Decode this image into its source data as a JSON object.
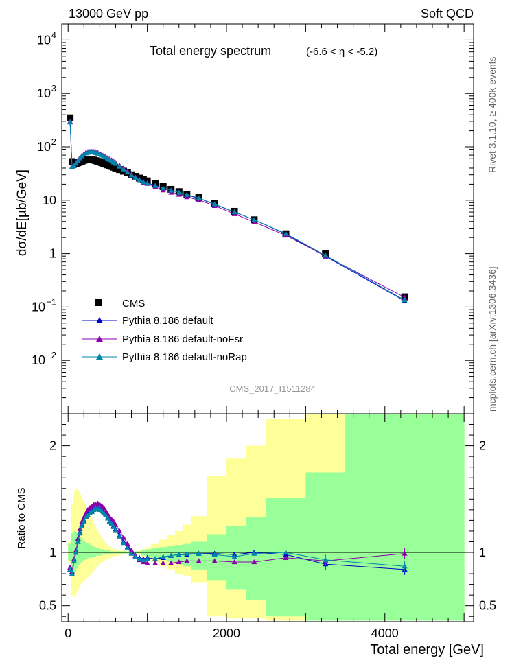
{
  "header": {
    "left": "13000 GeV pp",
    "right": "Soft QCD"
  },
  "side": {
    "rivet": "Rivet 3.1.10, ≥ 400k events",
    "mcplots": "mcplots.cern.ch [arXiv:1306.3436]"
  },
  "chart_data": [
    {
      "type": "line",
      "title": "Total energy spectrum",
      "title_range": "(-6.6 < η < -5.2)",
      "watermark": "CMS_2017_I1511284",
      "ylabel": "dσ/dE[µb/GeV]",
      "yscale": "log",
      "ylim": [
        0.001,
        20000
      ],
      "xlim": [
        -80,
        5120
      ],
      "y_ticks": [
        {
          "v": 0.01,
          "label": "10",
          "exp": "−2"
        },
        {
          "v": 0.1,
          "label": "10",
          "exp": "−1"
        },
        {
          "v": 1,
          "label": "1",
          "exp": ""
        },
        {
          "v": 10,
          "label": "10",
          "exp": ""
        },
        {
          "v": 100,
          "label": "10",
          "exp": "2"
        },
        {
          "v": 1000,
          "label": "10",
          "exp": "3"
        },
        {
          "v": 10000,
          "label": "10",
          "exp": "4"
        }
      ],
      "x": [
        25,
        50,
        75,
        100,
        125,
        150,
        175,
        200,
        225,
        250,
        275,
        300,
        325,
        350,
        375,
        400,
        425,
        450,
        475,
        500,
        525,
        550,
        575,
        600,
        650,
        700,
        750,
        800,
        850,
        900,
        950,
        1000,
        1100,
        1200,
        1300,
        1400,
        1500,
        1650,
        1850,
        2100,
        2350,
        2750,
        3250,
        4250
      ],
      "series": [
        {
          "name": "CMS",
          "color": "#000000",
          "marker": "square",
          "values": [
            350,
            53,
            48,
            49,
            50.5,
            52,
            54,
            56,
            57.5,
            58,
            58,
            57.5,
            56.5,
            55,
            53.5,
            52,
            50.5,
            49,
            47.5,
            46,
            44.5,
            43,
            41.5,
            40,
            37.5,
            35,
            32.5,
            30,
            28,
            26,
            24.5,
            23,
            20.5,
            18,
            16,
            14.5,
            13,
            11.2,
            8.7,
            6.2,
            4.3,
            2.35,
            1.0,
            0.155
          ]
        },
        {
          "name": "Pythia 8.186 default",
          "color": "#0000cc",
          "marker": "triangle",
          "values": [
            295,
            42,
            44,
            49,
            56,
            62,
            68,
            73,
            77,
            79,
            80,
            80,
            79.5,
            78,
            76,
            73.5,
            70.5,
            67.5,
            64.5,
            61,
            58,
            55,
            52,
            49,
            43.5,
            38.5,
            34,
            30,
            27,
            24.5,
            22.5,
            21,
            19,
            17,
            15.5,
            14,
            12.5,
            10.8,
            8.4,
            6.0,
            4.3,
            2.32,
            0.89,
            0.13
          ]
        },
        {
          "name": "Pythia 8.186 default-noFsr",
          "color": "#8a00aa",
          "marker": "triangle",
          "values": [
            300,
            43,
            45,
            50,
            57,
            63,
            69,
            74,
            78.5,
            81,
            82,
            82,
            81.5,
            80,
            78,
            75.5,
            72.5,
            69.5,
            66,
            62.5,
            59.5,
            56.5,
            53.5,
            50.5,
            45,
            40,
            35,
            30.5,
            27,
            24,
            21.5,
            20.5,
            17.8,
            15.5,
            14.0,
            12.8,
            11.5,
            10.1,
            7.9,
            5.55,
            3.9,
            2.2,
            0.91,
            0.152
          ]
        },
        {
          "name": "Pythia 8.186 default-noRap",
          "color": "#0088aa",
          "marker": "triangle",
          "values": [
            290,
            42,
            44,
            49,
            55.5,
            61.5,
            67.5,
            72.5,
            76.5,
            78.5,
            79.5,
            79.5,
            79,
            77.5,
            75.5,
            73,
            70,
            67,
            64,
            60.5,
            57.5,
            54.5,
            51.5,
            48.5,
            43,
            38,
            33.5,
            29.5,
            26.5,
            24,
            22,
            20.8,
            18.7,
            17,
            15.3,
            14,
            12.8,
            11,
            8.5,
            6.05,
            4.3,
            2.37,
            0.93,
            0.135
          ]
        }
      ]
    },
    {
      "type": "line",
      "ylabel": "Ratio to CMS",
      "xlabel": "Total energy [GeV]",
      "ylim": [
        0.35,
        2.3
      ],
      "y_ticks": [
        0.5,
        1,
        2
      ],
      "x_ticks": [
        0,
        2000,
        4000
      ],
      "band_edges": [
        0,
        40,
        60,
        80,
        100,
        125,
        150,
        175,
        200,
        225,
        250,
        275,
        300,
        325,
        350,
        375,
        400,
        425,
        450,
        475,
        500,
        525,
        550,
        575,
        600,
        625,
        675,
        725,
        775,
        825,
        875,
        925,
        975,
        1050,
        1150,
        1250,
        1350,
        1450,
        1550,
        1750,
        2000,
        2250,
        2500,
        3000,
        3500,
        5000
      ],
      "yellow_lo": [
        0.9,
        0.6,
        0.58,
        0.6,
        0.62,
        0.66,
        0.7,
        0.72,
        0.74,
        0.76,
        0.78,
        0.8,
        0.82,
        0.84,
        0.86,
        0.88,
        0.9,
        0.91,
        0.92,
        0.93,
        0.94,
        0.95,
        0.96,
        0.96,
        0.97,
        0.97,
        0.98,
        0.98,
        0.99,
        0.99,
        0.98,
        0.96,
        0.94,
        0.91,
        0.87,
        0.84,
        0.8,
        0.78,
        0.72,
        0.4,
        0.38,
        0.38,
        0.36,
        0.36,
        0.36
      ],
      "yellow_hi": [
        1.1,
        1.45,
        1.55,
        1.6,
        1.6,
        1.58,
        1.54,
        1.5,
        1.46,
        1.42,
        1.38,
        1.34,
        1.3,
        1.26,
        1.22,
        1.19,
        1.16,
        1.13,
        1.1,
        1.08,
        1.06,
        1.05,
        1.04,
        1.03,
        1.03,
        1.02,
        1.02,
        1.01,
        1.01,
        1.01,
        1.02,
        1.03,
        1.05,
        1.08,
        1.12,
        1.16,
        1.2,
        1.26,
        1.34,
        1.72,
        1.88,
        2.0,
        2.25,
        2.3,
        2.3
      ],
      "green_lo": [
        0.92,
        0.82,
        0.8,
        0.82,
        0.85,
        0.88,
        0.9,
        0.92,
        0.93,
        0.94,
        0.95,
        0.95,
        0.96,
        0.96,
        0.97,
        0.97,
        0.97,
        0.98,
        0.98,
        0.98,
        0.98,
        0.98,
        0.99,
        0.99,
        0.99,
        0.99,
        0.99,
        0.99,
        0.99,
        0.99,
        0.99,
        0.97,
        0.96,
        0.95,
        0.93,
        0.91,
        0.89,
        0.87,
        0.84,
        0.74,
        0.65,
        0.55,
        0.4,
        0.36,
        0.36
      ],
      "green_hi": [
        1.08,
        1.18,
        1.2,
        1.2,
        1.18,
        1.16,
        1.14,
        1.12,
        1.1,
        1.09,
        1.08,
        1.07,
        1.06,
        1.05,
        1.04,
        1.04,
        1.03,
        1.03,
        1.02,
        1.02,
        1.02,
        1.01,
        1.01,
        1.01,
        1.01,
        1.01,
        1.01,
        1.01,
        1.01,
        1.01,
        1.01,
        1.02,
        1.03,
        1.04,
        1.05,
        1.06,
        1.07,
        1.08,
        1.1,
        1.17,
        1.25,
        1.33,
        1.51,
        1.75,
        2.3
      ],
      "x": [
        25,
        50,
        75,
        100,
        125,
        150,
        175,
        200,
        225,
        250,
        275,
        300,
        325,
        350,
        375,
        400,
        425,
        450,
        475,
        500,
        525,
        550,
        575,
        600,
        650,
        700,
        750,
        800,
        850,
        900,
        950,
        1000,
        1100,
        1200,
        1300,
        1400,
        1500,
        1650,
        1850,
        2100,
        2350,
        2750,
        3250,
        4250
      ],
      "series": [
        {
          "name": "Pythia 8.186 default",
          "color": "#0000cc",
          "values": [
            0.84,
            0.8,
            0.92,
            1.0,
            1.1,
            1.19,
            1.26,
            1.3,
            1.34,
            1.37,
            1.38,
            1.39,
            1.41,
            1.42,
            1.42,
            1.41,
            1.4,
            1.38,
            1.36,
            1.33,
            1.3,
            1.28,
            1.25,
            1.22,
            1.16,
            1.1,
            1.05,
            1.0,
            0.97,
            0.95,
            0.94,
            0.95,
            0.94,
            0.95,
            0.97,
            0.98,
            0.98,
            0.99,
            0.99,
            0.98,
            1.0,
            0.98,
            0.89,
            0.84
          ]
        },
        {
          "name": "Pythia 8.186 default-noFsr",
          "color": "#8a00aa",
          "values": [
            0.86,
            0.82,
            0.94,
            1.02,
            1.13,
            1.22,
            1.29,
            1.33,
            1.37,
            1.4,
            1.42,
            1.43,
            1.45,
            1.45,
            1.46,
            1.45,
            1.44,
            1.42,
            1.39,
            1.36,
            1.33,
            1.31,
            1.29,
            1.26,
            1.2,
            1.14,
            1.08,
            1.02,
            0.97,
            0.93,
            0.91,
            0.9,
            0.9,
            0.9,
            0.9,
            0.91,
            0.92,
            0.92,
            0.92,
            0.91,
            0.91,
            0.95,
            0.92,
            0.99
          ]
        },
        {
          "name": "Pythia 8.186 default-noRap",
          "color": "#0088aa",
          "values": [
            0.84,
            0.8,
            0.92,
            1.0,
            1.1,
            1.18,
            1.25,
            1.29,
            1.33,
            1.35,
            1.37,
            1.38,
            1.4,
            1.41,
            1.41,
            1.4,
            1.39,
            1.37,
            1.35,
            1.32,
            1.29,
            1.27,
            1.24,
            1.21,
            1.15,
            1.09,
            1.04,
            0.99,
            0.96,
            0.94,
            0.93,
            0.94,
            0.94,
            0.96,
            0.97,
            0.98,
            0.99,
            0.99,
            0.98,
            0.96,
            0.99,
            1.0,
            0.93,
            0.87
          ]
        }
      ]
    }
  ]
}
